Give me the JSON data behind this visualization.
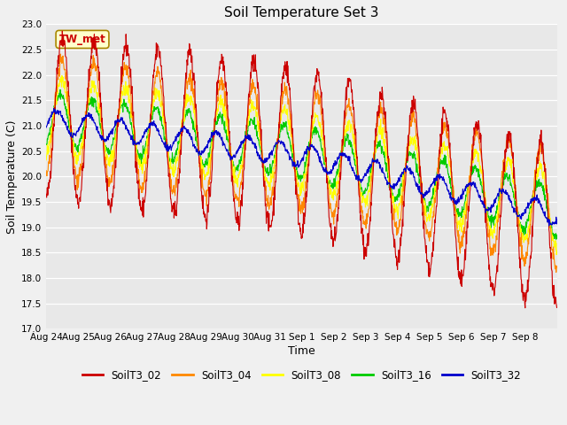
{
  "title": "Soil Temperature Set 3",
  "xlabel": "Time",
  "ylabel": "Soil Temperature (C)",
  "ylim": [
    17.0,
    23.0
  ],
  "yticks": [
    17.0,
    17.5,
    18.0,
    18.5,
    19.0,
    19.5,
    20.0,
    20.5,
    21.0,
    21.5,
    22.0,
    22.5,
    23.0
  ],
  "xtick_labels": [
    "Aug 24",
    "Aug 25",
    "Aug 26",
    "Aug 27",
    "Aug 28",
    "Aug 29",
    "Aug 30",
    "Aug 31",
    "Sep 1",
    "Sep 2",
    "Sep 3",
    "Sep 4",
    "Sep 5",
    "Sep 6",
    "Sep 7",
    "Sep 8"
  ],
  "series_colors": {
    "SoilT3_02": "#cc0000",
    "SoilT3_04": "#ff8800",
    "SoilT3_08": "#ffff00",
    "SoilT3_16": "#00cc00",
    "SoilT3_32": "#0000cc"
  },
  "legend_label_order": [
    "SoilT3_02",
    "SoilT3_04",
    "SoilT3_08",
    "SoilT3_16",
    "SoilT3_32"
  ],
  "annotation_text": "TW_met",
  "bg_color": "#e8e8e8",
  "grid_color": "#ffffff",
  "title_fontsize": 11,
  "n_points": 1500
}
